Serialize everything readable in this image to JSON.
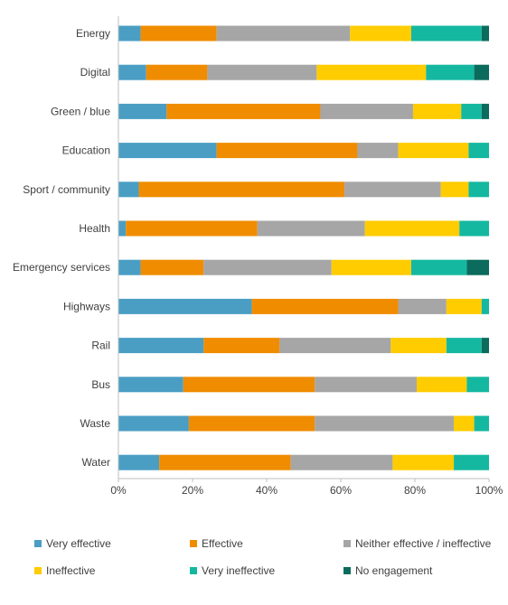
{
  "chart_data": {
    "type": "bar",
    "orientation": "horizontal",
    "stacked": true,
    "categories": [
      "Energy",
      "Digital",
      "Green / blue",
      "Education",
      "Sport / community",
      "Health",
      "Emergency services",
      "Highways",
      "Rail",
      "Bus",
      "Waste",
      "Water"
    ],
    "series": [
      {
        "name": "Very effective",
        "color": "#4a9ec4",
        "values": [
          6,
          7.5,
          13,
          26.5,
          5.5,
          2,
          6,
          36,
          23,
          17.5,
          19,
          11
        ]
      },
      {
        "name": "Effective",
        "color": "#f08c00",
        "values": [
          20.5,
          16.5,
          41.5,
          38,
          55.5,
          35.5,
          17,
          39.5,
          20.5,
          35.5,
          34,
          35.5
        ]
      },
      {
        "name": "Neither effective / ineffective",
        "color": "#a6a6a6",
        "values": [
          36,
          29.5,
          25,
          11,
          26,
          29,
          34.5,
          13,
          30,
          27.5,
          37.5,
          27.5
        ]
      },
      {
        "name": "Ineffective",
        "color": "#ffcc00",
        "values": [
          16.5,
          29.5,
          13,
          19,
          7.5,
          25.5,
          21.5,
          9.5,
          15,
          13.5,
          5.5,
          16.5
        ]
      },
      {
        "name": "Very ineffective",
        "color": "#14b8a0",
        "values": [
          19,
          13,
          5.5,
          5.5,
          5.5,
          8,
          15,
          2,
          9.5,
          6,
          4,
          9.5
        ]
      },
      {
        "name": "No engagement",
        "color": "#0b6b5c",
        "values": [
          2,
          4,
          2,
          0,
          0,
          0,
          6,
          0,
          2,
          0,
          0,
          0
        ]
      }
    ],
    "xlim": [
      0,
      100
    ],
    "xticks": [
      "0%",
      "20%",
      "40%",
      "60%",
      "80%",
      "100%"
    ],
    "grid": false,
    "legend_position": "bottom"
  }
}
